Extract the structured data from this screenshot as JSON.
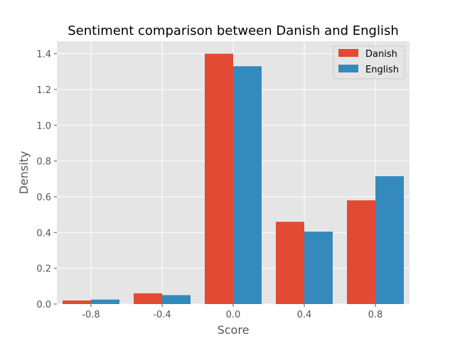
{
  "chart_data": {
    "type": "bar",
    "title": "Sentiment comparison between Danish and English",
    "xlabel": "Score",
    "ylabel": "Density",
    "categories": [
      "-0.8",
      "-0.4",
      "0.0",
      "0.4",
      "0.8"
    ],
    "x": [
      -0.8,
      -0.4,
      0.0,
      0.4,
      0.8
    ],
    "xlim": [
      -0.992,
      0.992
    ],
    "ylim": [
      0,
      1.47
    ],
    "yticks": [
      0.0,
      0.2,
      0.4,
      0.6,
      0.8,
      1.0,
      1.2,
      1.4
    ],
    "ytick_labels": [
      "0.0",
      "0.2",
      "0.4",
      "0.6",
      "0.8",
      "1.0",
      "1.2",
      "1.4"
    ],
    "grid": true,
    "legend_position": "top-right",
    "series": [
      {
        "name": "Danish",
        "color": "#E24A33",
        "values": [
          0.02,
          0.06,
          1.4,
          0.46,
          0.58
        ]
      },
      {
        "name": "English",
        "color": "#348ABD",
        "values": [
          0.025,
          0.05,
          1.33,
          0.405,
          0.715
        ]
      }
    ]
  }
}
